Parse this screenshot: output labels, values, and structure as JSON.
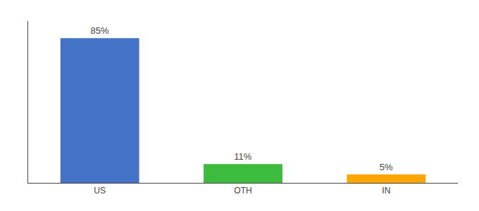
{
  "chart_data": {
    "type": "bar",
    "categories": [
      "US",
      "OTH",
      "IN"
    ],
    "values": [
      85,
      11,
      5
    ],
    "value_labels": [
      "85%",
      "11%",
      "5%"
    ],
    "colors": [
      "#4472C4",
      "#3DBB3D",
      "#FFA500"
    ],
    "ylim": [
      0,
      95
    ],
    "grid": false,
    "data_labels": true,
    "tick_labels": "x"
  }
}
